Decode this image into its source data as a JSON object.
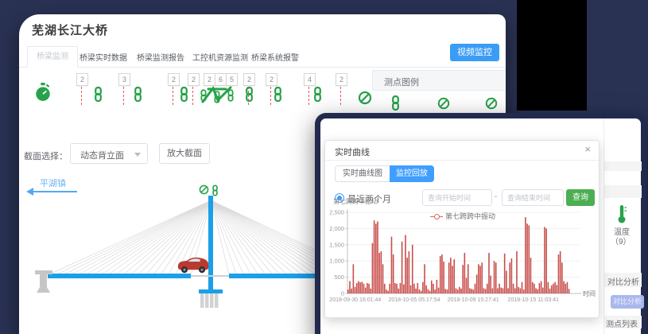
{
  "colors": {
    "accent_blue": "#409eff",
    "success_green": "#4cae51",
    "series_red": "#c23a36",
    "background_navy": "#2a3254",
    "sensor_green": "#27a24b",
    "alert_red_dash": "#e05b5b"
  },
  "main_window": {
    "title": "芜湖长江大桥",
    "tabs": [
      "桥梁监测",
      "桥梁实时数据",
      "桥梁监测报告",
      "工控机资源监测",
      "桥梁系统报警"
    ],
    "video_button": "视频监控",
    "legend_panel_title": "测点图例",
    "sensor_badges": [
      "2",
      "3",
      "2",
      "2",
      "2",
      "6",
      "5",
      "2",
      "2",
      "4",
      "2"
    ],
    "section_label": "截面选择：",
    "section_value": "动态背立面",
    "zoom_button": "放大截面",
    "direction_label": "平湖镇"
  },
  "right_panel": {
    "temp_label": "温度",
    "temp_count": "（9）",
    "compare_title": "对比分析",
    "compare_button": "对比分析",
    "list_title": "测点列表"
  },
  "dialog": {
    "title": "实时曲线",
    "close": "×",
    "tabs": [
      "实时曲线图",
      "监控回放"
    ],
    "radio_label": "最近两个月",
    "start_placeholder": "查询开始时间",
    "range_separator": "-",
    "end_placeholder": "查询结束时间",
    "query_button": "查询"
  },
  "chart_data": {
    "type": "bar",
    "title": "",
    "ylabel": "第七跨跨中振动",
    "xlabel": "时间",
    "legend": [
      "第七跨跨中振动"
    ],
    "legend_position": "top",
    "grid": true,
    "ylim": [
      0,
      2500
    ],
    "yticks": [
      0,
      500,
      1000,
      1500,
      2000,
      2500
    ],
    "ytick_labels": [
      "0",
      "500",
      "1,000",
      "1,500",
      "2,000",
      "2,500"
    ],
    "xtick_labels": [
      "2018-09-30 16:01:44",
      "2018-10-05 05:17:54",
      "2018-10-09 15:27:41",
      "2018-10-15 11:03:41"
    ],
    "series": [
      {
        "name": "第七跨跨中振动",
        "values": [
          120,
          380,
          150,
          900,
          200,
          320,
          380,
          340,
          360,
          300,
          180,
          320,
          300,
          150,
          1550,
          2250,
          2150,
          2220,
          1250,
          1300,
          900,
          300,
          120,
          80,
          300,
          1750,
          1200,
          320,
          300,
          150,
          320,
          1600,
          280,
          1800,
          1100,
          1300,
          250,
          1500,
          300,
          150,
          320,
          120,
          80,
          350,
          900,
          250,
          130,
          80,
          400,
          300,
          120,
          420,
          180,
          1150,
          1200,
          980,
          140,
          120,
          950,
          1100,
          850,
          1050,
          160,
          120,
          200,
          150,
          880,
          1250,
          480,
          900,
          160,
          140,
          120,
          300,
          580,
          900,
          850,
          950,
          160,
          140,
          300,
          1250,
          550,
          160,
          1000,
          950,
          160,
          300,
          180,
          160,
          1230,
          700,
          160,
          950,
          1080,
          300,
          160,
          1300,
          200,
          160,
          350,
          120,
          2350,
          2150,
          2100,
          1100,
          350,
          300,
          160,
          130,
          320,
          380,
          180,
          2050,
          2000,
          350,
          150,
          250,
          300,
          350,
          260,
          1200,
          1300,
          950,
          380,
          300,
          350,
          140
        ]
      }
    ],
    "color": "#c23a36"
  }
}
